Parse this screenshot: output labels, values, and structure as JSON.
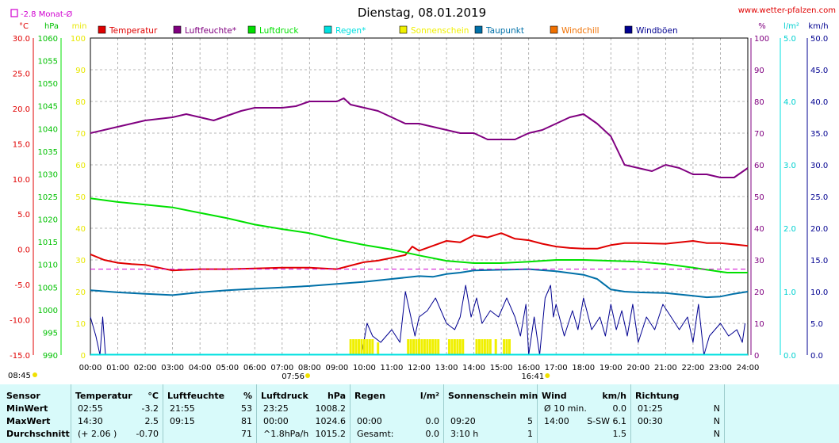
{
  "header": {
    "title": "Dienstag, 08.01.2019",
    "website": "www.wetter-pfalzen.com",
    "monthly_avg_label": "-2.8 Monat-Ø",
    "monthly_avg_value": -2.8
  },
  "colors": {
    "temperature": "#e00000",
    "humidity": "#800080",
    "pressure": "#00e000",
    "rain": "#00e0e0",
    "sunshine": "#f0f000",
    "dewpoint": "#0070a8",
    "windchill": "#f07000",
    "gusts": "#000090",
    "monthly_avg": "#d000d0",
    "table_bg": "#d8fafa"
  },
  "chart_data": {
    "type": "line",
    "x_ticks": [
      "00:00",
      "01:00",
      "02:00",
      "03:00",
      "04:00",
      "05:00",
      "06:00",
      "07:00",
      "08:00",
      "09:00",
      "10:00",
      "11:00",
      "12:00",
      "13:00",
      "14:00",
      "15:00",
      "16:00",
      "17:00",
      "18:00",
      "19:00",
      "20:00",
      "21:00",
      "22:00",
      "23:00",
      "24:00"
    ],
    "x_range_hours": [
      0,
      24
    ],
    "grid": true,
    "legend_placement": "top",
    "sunrise": "07:56",
    "sunset": "16:41",
    "axes": {
      "temp": {
        "unit": "°C",
        "range": [
          -15,
          30
        ],
        "ticks": [
          "30.0",
          "25.0",
          "20.0",
          "15.0",
          "10.0",
          "5.0",
          "0.0",
          "-5.0",
          "-10.0",
          "-15.0"
        ]
      },
      "pressure": {
        "unit": "hPa",
        "range": [
          990,
          1060
        ],
        "ticks": [
          "1060",
          "1055",
          "1050",
          "1045",
          "1040",
          "1035",
          "1030",
          "1025",
          "1020",
          "1015",
          "1010",
          "1005",
          "1000",
          "995",
          "990"
        ]
      },
      "sunshine": {
        "unit": "min",
        "range": [
          0,
          100
        ],
        "ticks": [
          "100",
          "90",
          "80",
          "70",
          "60",
          "50",
          "40",
          "30",
          "20",
          "10",
          "0"
        ]
      },
      "humidity": {
        "unit": "%",
        "range": [
          0,
          100
        ],
        "ticks": [
          "100",
          "90",
          "80",
          "70",
          "60",
          "50",
          "40",
          "30",
          "20",
          "10",
          "0"
        ]
      },
      "rain": {
        "unit": "l/m²",
        "range": [
          0,
          5
        ],
        "ticks": [
          "5.0",
          "4.0",
          "3.0",
          "2.0",
          "1.0",
          "0.0"
        ]
      },
      "wind": {
        "unit": "km/h",
        "range": [
          0,
          50
        ],
        "ticks": [
          "50.0",
          "45.0",
          "40.0",
          "35.0",
          "30.0",
          "25.0",
          "20.0",
          "15.0",
          "10.0",
          "5.0",
          "0.0"
        ]
      }
    },
    "legend": [
      {
        "key": "temperature",
        "label": "Temperatur"
      },
      {
        "key": "humidity",
        "label": "Luftfeuchte*"
      },
      {
        "key": "pressure",
        "label": "Luftdruck"
      },
      {
        "key": "rain",
        "label": "Regen*"
      },
      {
        "key": "sunshine",
        "label": "Sonnenschein"
      },
      {
        "key": "dewpoint",
        "label": "Taupunkt"
      },
      {
        "key": "windchill",
        "label": "Windchill"
      },
      {
        "key": "gusts",
        "label": "Windböen"
      }
    ],
    "series": [
      {
        "name": "Temperatur",
        "key": "temperature",
        "axis": "temp",
        "x": [
          0,
          0.5,
          1,
          1.5,
          2,
          2.5,
          3,
          3.5,
          4,
          5,
          6,
          7,
          8,
          9,
          9.5,
          10,
          10.5,
          11,
          11.5,
          11.75,
          12,
          12.5,
          13,
          13.5,
          14,
          14.5,
          15,
          15.5,
          16,
          16.5,
          17,
          17.5,
          18,
          18.5,
          19,
          19.5,
          20,
          21,
          22,
          22.5,
          23,
          23.5,
          24
        ],
        "values": [
          -0.7,
          -1.5,
          -1.9,
          -2.1,
          -2.2,
          -2.6,
          -3.0,
          -2.9,
          -2.8,
          -2.8,
          -2.7,
          -2.6,
          -2.6,
          -2.8,
          -2.3,
          -1.8,
          -1.6,
          -1.2,
          -0.8,
          0.4,
          -0.2,
          0.5,
          1.2,
          1.0,
          2.0,
          1.7,
          2.3,
          1.5,
          1.3,
          0.8,
          0.4,
          0.2,
          0.1,
          0.1,
          0.6,
          0.9,
          0.9,
          0.8,
          1.2,
          0.9,
          0.9,
          0.7,
          0.5
        ]
      },
      {
        "name": "Luftfeuchte",
        "key": "humidity",
        "axis": "humidity",
        "x": [
          0,
          0.5,
          1,
          1.5,
          2,
          2.5,
          3,
          3.5,
          4,
          4.5,
          5,
          5.5,
          6,
          6.5,
          7,
          7.5,
          8,
          8.5,
          9,
          9.25,
          9.5,
          10,
          10.5,
          11,
          11.5,
          12,
          12.5,
          13,
          13.5,
          14,
          14.5,
          15,
          15.5,
          16,
          16.5,
          17,
          17.5,
          18,
          18.5,
          19,
          19.5,
          20,
          20.5,
          21,
          21.5,
          22,
          22.5,
          23,
          23.5,
          24
        ],
        "values": [
          70,
          71,
          72,
          73,
          74,
          74.5,
          75,
          76,
          75,
          74,
          75.5,
          77,
          78,
          78,
          78,
          78.5,
          80,
          80,
          80,
          81,
          79,
          78,
          77,
          75,
          73,
          73,
          72,
          71,
          70,
          70,
          68,
          68,
          68,
          70,
          71,
          73,
          75,
          76,
          73,
          69,
          60,
          59,
          58,
          60,
          59,
          57,
          57,
          56,
          56,
          59
        ]
      },
      {
        "name": "Luftdruck",
        "key": "pressure",
        "axis": "pressure",
        "x": [
          0,
          1,
          2,
          3,
          4,
          5,
          6,
          7,
          8,
          9,
          10,
          11,
          12,
          13,
          14,
          15,
          16,
          17,
          18,
          19,
          20,
          21,
          22,
          23,
          23.25,
          24
        ],
        "values": [
          1024.6,
          1023.8,
          1023.2,
          1022.6,
          1021.4,
          1020.2,
          1018.8,
          1017.8,
          1016.9,
          1015.5,
          1014.3,
          1013.3,
          1012.0,
          1010.8,
          1010.3,
          1010.3,
          1010.6,
          1011.0,
          1011.0,
          1010.8,
          1010.6,
          1010.1,
          1009.3,
          1008.4,
          1008.2,
          1008.2
        ]
      },
      {
        "name": "Taupunkt",
        "key": "dewpoint",
        "axis": "temp",
        "x": [
          0,
          1,
          2,
          3,
          4,
          5,
          6,
          7,
          8,
          9,
          10,
          11,
          12,
          12.5,
          13,
          13.5,
          14,
          15,
          16,
          17,
          18,
          18.5,
          19,
          19.5,
          20,
          21,
          22,
          22.5,
          23,
          23.5,
          24
        ],
        "values": [
          -5.8,
          -6.1,
          -6.3,
          -6.5,
          -6.1,
          -5.8,
          -5.6,
          -5.4,
          -5.2,
          -4.9,
          -4.6,
          -4.2,
          -3.8,
          -3.9,
          -3.5,
          -3.3,
          -3.0,
          -2.9,
          -2.8,
          -3.1,
          -3.6,
          -4.2,
          -5.7,
          -6.0,
          -6.1,
          -6.2,
          -6.6,
          -6.8,
          -6.7,
          -6.3,
          -6.0
        ]
      },
      {
        "name": "Windböen",
        "key": "gusts",
        "axis": "wind",
        "x": [
          0,
          0.2,
          0.35,
          0.45,
          0.55,
          1,
          9.9,
          10.1,
          10.3,
          10.6,
          11,
          11.3,
          11.5,
          11.7,
          11.85,
          12,
          12.3,
          12.6,
          13,
          13.3,
          13.5,
          13.7,
          13.9,
          14.1,
          14.3,
          14.6,
          14.9,
          15.2,
          15.5,
          15.7,
          15.9,
          16,
          16.2,
          16.4,
          16.6,
          16.8,
          16.9,
          17,
          17.3,
          17.6,
          17.8,
          18,
          18.3,
          18.6,
          18.8,
          19,
          19.2,
          19.4,
          19.6,
          19.8,
          20,
          20.3,
          20.6,
          20.9,
          21.2,
          21.5,
          21.8,
          22,
          22.2,
          22.4,
          22.6,
          23,
          23.3,
          23.6,
          23.8,
          23.9
        ],
        "values": [
          6,
          3,
          0,
          6,
          0,
          0,
          0,
          5,
          3,
          2,
          4,
          2,
          10,
          6,
          3,
          6,
          7,
          9,
          5,
          4,
          6,
          11,
          6,
          9,
          5,
          7,
          6,
          9,
          6,
          3,
          8,
          0,
          6,
          0,
          9,
          11,
          6,
          8,
          3,
          7,
          4,
          9,
          4,
          6,
          3,
          8,
          4,
          7,
          3,
          8,
          2,
          6,
          4,
          8,
          6,
          4,
          6,
          2,
          8,
          0,
          3,
          5,
          3,
          4,
          2,
          5
        ]
      },
      {
        "name": "Sonnenschein",
        "key": "sunshine",
        "axis": "sunshine",
        "x": [
          9.5,
          9.6,
          9.7,
          9.8,
          9.9,
          10.0,
          10.1,
          10.2,
          10.3,
          10.5,
          11.6,
          11.7,
          11.8,
          11.9,
          12.0,
          12.1,
          12.2,
          12.3,
          12.4,
          12.5,
          12.6,
          12.7,
          13.1,
          13.2,
          13.3,
          13.4,
          13.5,
          13.6,
          14.1,
          14.2,
          14.3,
          14.4,
          14.5,
          14.6,
          14.8,
          15.1,
          15.2,
          15.3
        ],
        "values": [
          5,
          5,
          5,
          5,
          5,
          5,
          5,
          5,
          5,
          4,
          5,
          5,
          5,
          5,
          5,
          5,
          5,
          5,
          5,
          5,
          5,
          5,
          5,
          5,
          5,
          5,
          5,
          5,
          5,
          5,
          5,
          5,
          5,
          5,
          5,
          5,
          5,
          5
        ]
      },
      {
        "name": "Monat-Ø",
        "key": "monthly_avg",
        "axis": "temp",
        "x": [
          0,
          24
        ],
        "values": [
          -2.8,
          -2.8
        ]
      }
    ]
  },
  "table": {
    "row_labels": [
      "Sensor",
      "MinWert",
      "MaxWert",
      "Durchschnitt"
    ],
    "columns": [
      {
        "title": "Temperatur",
        "unit": "°C",
        "rows": [
          [
            "02:55",
            "-3.2"
          ],
          [
            "14:30",
            "2.5"
          ],
          [
            "(+ 2.06 )",
            "-0.70"
          ]
        ]
      },
      {
        "title": "Luftfeuchte",
        "unit": "%",
        "rows": [
          [
            "21:55",
            "53"
          ],
          [
            "09:15",
            "81"
          ],
          [
            "",
            "71"
          ]
        ]
      },
      {
        "title": "Luftdruck",
        "unit": "hPa",
        "rows": [
          [
            "23:25",
            "1008.2"
          ],
          [
            "00:00",
            "1024.6"
          ],
          [
            "^1.8hPa/h",
            "1015.2"
          ]
        ]
      },
      {
        "title": "Regen",
        "unit": "l/m²",
        "rows": [
          [
            "",
            ""
          ],
          [
            "00:00",
            "0.0"
          ],
          [
            "Gesamt:",
            "0.0"
          ]
        ]
      },
      {
        "title": "Sonnenschein min",
        "unit": "",
        "rows": [
          [
            "",
            ""
          ],
          [
            "09:20",
            "5"
          ],
          [
            "3:10 h",
            "1"
          ]
        ]
      },
      {
        "title": "Wind",
        "unit": "km/h",
        "rows": [
          [
            "Ø 10 min.",
            "0.0"
          ],
          [
            "14:00",
            "S-SW 6.1"
          ],
          [
            "",
            "1.5"
          ]
        ]
      },
      {
        "title": "Richtung",
        "unit": "",
        "rows": [
          [
            "01:25",
            "N"
          ],
          [
            "00:30",
            "N"
          ],
          [
            "",
            "N"
          ]
        ]
      }
    ]
  }
}
